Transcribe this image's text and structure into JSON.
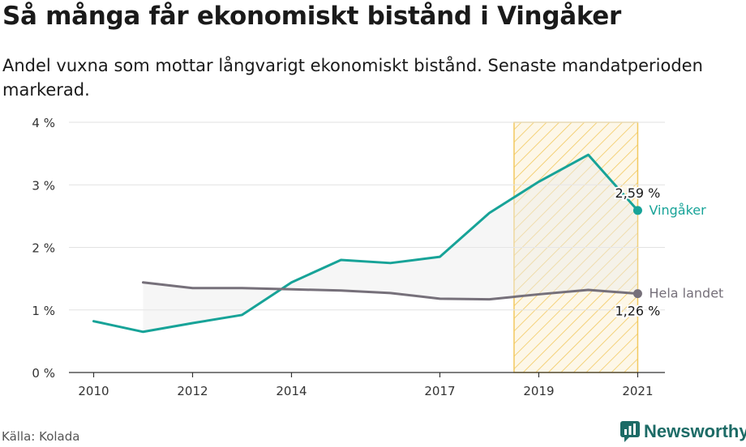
{
  "title": "Så många får ekonomiskt bistånd i Vingåker",
  "subtitle": "Andel vuxna som mottar långvarigt ekonomiskt bistånd. Senaste mandatperioden markerad.",
  "source": "Källa: Kolada",
  "brand": {
    "name": "Newsworthy",
    "icon": "newsworthy-logo-icon",
    "color": "#1c6b66"
  },
  "colors": {
    "vingaker": "#17a398",
    "hela_landet": "#76707a",
    "period": "#f2c95f",
    "area": "#eeeeee"
  },
  "chart_data": {
    "type": "line",
    "x_ticks": [
      2010,
      2012,
      2014,
      2017,
      2019,
      2021
    ],
    "y_ticks": [
      0,
      1,
      2,
      3,
      4
    ],
    "y_tick_labels": [
      "0 %",
      "1 %",
      "2 %",
      "3 %",
      "4 %"
    ],
    "ylim": [
      0,
      4
    ],
    "xlim": [
      2009.5,
      2021.55
    ],
    "highlight_period": [
      2018.5,
      2021
    ],
    "grid": true,
    "series": [
      {
        "name": "Vingåker",
        "color": "#17a398",
        "x": [
          2010,
          2011,
          2012,
          2013,
          2014,
          2015,
          2016,
          2017,
          2018,
          2019,
          2020,
          2021
        ],
        "values": [
          0.82,
          0.65,
          0.79,
          0.92,
          1.44,
          1.8,
          1.75,
          1.85,
          2.55,
          3.05,
          3.48,
          2.59
        ],
        "end_label": "2,59 %"
      },
      {
        "name": "Hela landet",
        "color": "#76707a",
        "x": [
          2011,
          2012,
          2013,
          2014,
          2015,
          2016,
          2017,
          2018,
          2019,
          2020,
          2021
        ],
        "values": [
          1.44,
          1.35,
          1.35,
          1.33,
          1.31,
          1.27,
          1.18,
          1.17,
          1.25,
          1.32,
          1.26
        ],
        "end_label": "1,26 %"
      }
    ]
  }
}
